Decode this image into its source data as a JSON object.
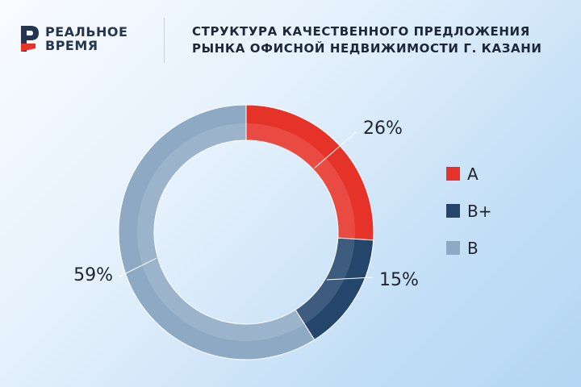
{
  "brand": {
    "line1": "РЕАЛЬНОЕ",
    "line2": "ВРЕМЯ"
  },
  "title": {
    "line1": "СТРУКТУРА КАЧЕСТВЕННОГО ПРЕДЛОЖЕНИЯ",
    "line2": "РЫНКА ОФИСНОЙ НЕДВИЖИМОСТИ Г. КАЗАНИ"
  },
  "colors": {
    "A": "#e6332a",
    "B+": "#24466b",
    "B": "#8ea9c4",
    "brand_red": "#e6332a",
    "brand_dark": "#25344f"
  },
  "chart_data": {
    "type": "pie",
    "variant": "donut",
    "title": "СТРУКТУРА КАЧЕСТВЕННОГО ПРЕДЛОЖЕНИЯ РЫНКА ОФИСНОЙ НЕДВИЖИМОСТИ Г. КАЗАНИ",
    "unit": "%",
    "categories": [
      "A",
      "B+",
      "B"
    ],
    "values": [
      26,
      15,
      59
    ],
    "labels": [
      "26%",
      "15%",
      "59%"
    ],
    "legend_position": "right"
  }
}
